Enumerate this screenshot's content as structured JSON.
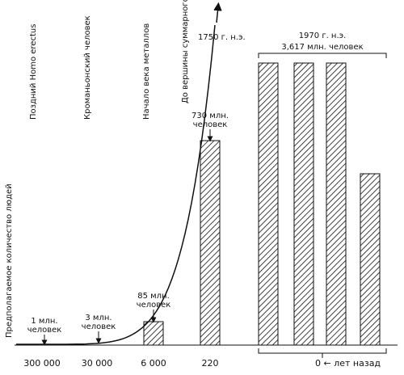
{
  "chart_data": {
    "type": "bar",
    "ylabel": "Предполагаемое количество людей",
    "period_labels": [
      "Поздний Homo erectus",
      "Кроманьонский человек",
      "Начало века металлов"
    ],
    "x_ticks": [
      "300 000",
      "30 000",
      "6 000",
      "220"
    ],
    "x_axis_unit": "0 ← лет назад",
    "bars": [
      {
        "years_ago": "6 000",
        "population_millions": 85
      },
      {
        "years_ago": "220",
        "population_millions": 730
      }
    ],
    "broken_bar": {
      "years_ago": 0,
      "population_millions": 3617,
      "segments": 4,
      "label_year": "1970 г. н.э.",
      "label_pop": "3,617 млн. человек"
    },
    "curve": {
      "label_year": "1750 г. н.э.",
      "label_note": "До вершины суммарного столба"
    },
    "annotations": [
      {
        "line1": "1 млн.",
        "line2": "человек",
        "population_millions": 1
      },
      {
        "line1": "3 млн.",
        "line2": "человек",
        "population_millions": 3
      },
      {
        "line1": "85 млн.",
        "line2": "человек",
        "population_millions": 85
      },
      {
        "line1": "730 млн.",
        "line2": "человек",
        "population_millions": 730
      }
    ]
  }
}
